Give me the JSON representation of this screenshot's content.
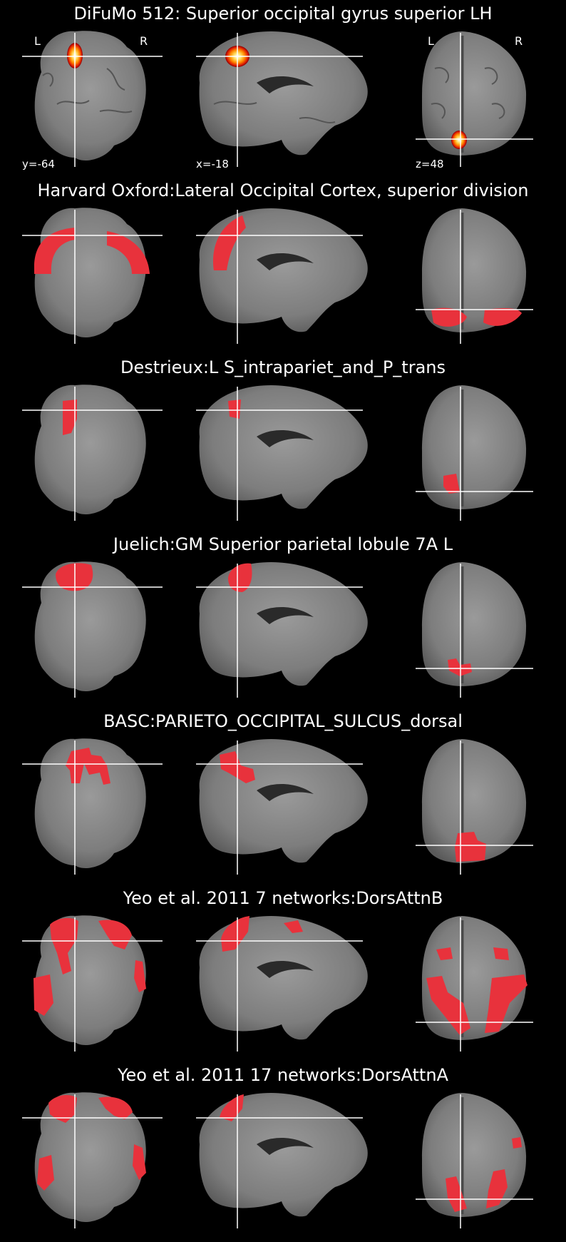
{
  "colors": {
    "background": "#000000",
    "atlas_overlay": "#e8323c",
    "crosshair": "#ffffff",
    "hot_map": [
      "#8a0000",
      "#e02000",
      "#ff8c00",
      "#ffe066",
      "#ffffff"
    ]
  },
  "cuts": {
    "y": "y=-64",
    "x": "x=-18",
    "z": "z=48"
  },
  "orientation": {
    "left": "L",
    "right": "R"
  },
  "panels": [
    {
      "title": "DiFuMo 512: Superior occipital gyrus superior LH",
      "style": "hot"
    },
    {
      "title": "Harvard Oxford:Lateral Occipital Cortex, superior division",
      "style": "atlas"
    },
    {
      "title": "Destrieux:L S_intrapariet_and_P_trans",
      "style": "atlas"
    },
    {
      "title": "Juelich:GM Superior parietal lobule 7A L",
      "style": "atlas"
    },
    {
      "title": "BASC:PARIETO_OCCIPITAL_SULCUS_dorsal",
      "style": "atlas"
    },
    {
      "title": "Yeo et al. 2011 7 networks:DorsAttnB",
      "style": "atlas"
    },
    {
      "title": "Yeo et al. 2011 17 networks:DorsAttnA",
      "style": "atlas"
    }
  ]
}
